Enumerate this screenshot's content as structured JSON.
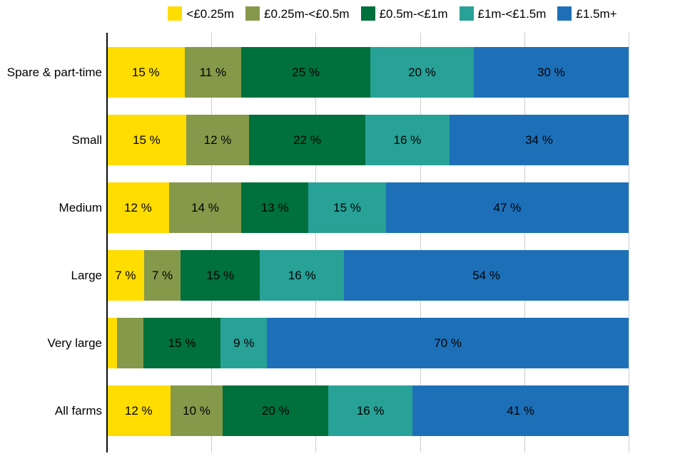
{
  "chart_data": {
    "type": "bar",
    "variant": "horizontal-stacked",
    "title": "",
    "xlabel": "",
    "ylabel": "",
    "unit": "%",
    "xlim": [
      0,
      100
    ],
    "gridline_step": 20,
    "grid": true,
    "axis_tick_labels_visible": false,
    "legend_position": "top",
    "categories": [
      "Spare & part-time",
      "Small",
      "Medium",
      "Large",
      "Very large",
      "All farms"
    ],
    "series": [
      {
        "name": "<£0.25m",
        "color": "#FFDD00",
        "values": [
          15,
          15,
          12,
          7,
          2,
          12
        ]
      },
      {
        "name": "£0.25m-<£0.5m",
        "color": "#85994B",
        "values": [
          11,
          12,
          14,
          7,
          5,
          10
        ]
      },
      {
        "name": "£0.5m-<£1m",
        "color": "#00703C",
        "values": [
          25,
          22,
          13,
          15,
          15,
          20
        ]
      },
      {
        "name": "£1m-<£1.5m",
        "color": "#28A197",
        "values": [
          20,
          16,
          15,
          16,
          9,
          16
        ]
      },
      {
        "name": "£1.5m+",
        "color": "#1D70B8",
        "values": [
          30,
          34,
          47,
          54,
          70,
          41
        ]
      }
    ],
    "segment_labels": [
      [
        "15 %",
        "11 %",
        "25 %",
        "20 %",
        "30 %"
      ],
      [
        "15 %",
        "12 %",
        "22 %",
        "16 %",
        "34 %"
      ],
      [
        "12 %",
        "14 %",
        "13 %",
        "15 %",
        "47 %"
      ],
      [
        "7 %",
        "7 %",
        "15 %",
        "16 %",
        "54 %"
      ],
      [
        "",
        "",
        "15 %",
        "9 %",
        "70 %"
      ],
      [
        "12 %",
        "10 %",
        "20 %",
        "16 %",
        "41 %"
      ]
    ],
    "colors": {
      "axis_line": "#0b0c0c",
      "gridline": "#cdcdcd",
      "label_text": "#000000",
      "background": "#ffffff"
    }
  }
}
